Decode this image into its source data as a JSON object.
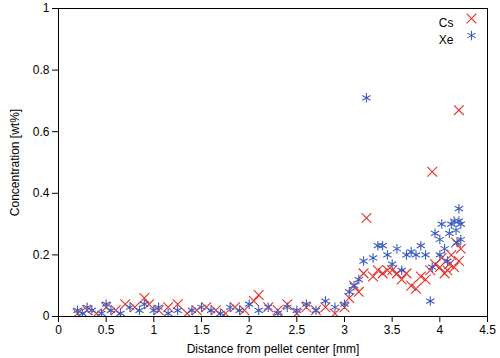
{
  "chart_data": {
    "type": "scatter",
    "x_label": "Distance from pellet center [mm]",
    "y_label": "Concentration [wt%]",
    "xlim": [
      0,
      4.5
    ],
    "xticks": [
      0,
      0.5,
      1,
      1.5,
      2,
      2.5,
      3,
      3.5,
      4,
      4.5
    ],
    "ylim": [
      0,
      1
    ],
    "yticks": [
      0,
      0.2,
      0.4,
      0.6,
      0.8,
      1
    ],
    "grid": false,
    "legend": "top-right",
    "series": [
      {
        "name": "Cs",
        "color": "#e3312b",
        "marker": "x",
        "x": [
          0.2,
          0.3,
          0.4,
          0.5,
          0.6,
          0.7,
          0.8,
          0.9,
          0.95,
          1.05,
          1.15,
          1.25,
          1.35,
          1.45,
          1.55,
          1.65,
          1.75,
          1.85,
          1.95,
          2.05,
          2.1,
          2.2,
          2.3,
          2.4,
          2.5,
          2.6,
          2.7,
          2.8,
          2.9,
          3.0,
          3.05,
          3.1,
          3.15,
          3.2,
          3.23,
          3.3,
          3.35,
          3.4,
          3.45,
          3.5,
          3.55,
          3.6,
          3.65,
          3.7,
          3.75,
          3.8,
          3.85,
          3.9,
          3.92,
          3.95,
          4.0,
          4.02,
          4.05,
          4.08,
          4.1,
          4.12,
          4.15,
          4.17,
          4.2,
          4.2,
          4.22
        ],
        "values": [
          0.01,
          0.02,
          0.01,
          0.03,
          0.02,
          0.04,
          0.03,
          0.06,
          0.04,
          0.02,
          0.03,
          0.04,
          0.01,
          0.02,
          0.03,
          0.02,
          0.01,
          0.03,
          0.02,
          0.05,
          0.07,
          0.03,
          0.02,
          0.04,
          0.01,
          0.03,
          0.02,
          0.03,
          0.01,
          0.03,
          0.06,
          0.1,
          0.08,
          0.14,
          0.32,
          0.13,
          0.15,
          0.14,
          0.15,
          0.15,
          0.14,
          0.12,
          0.14,
          0.1,
          0.09,
          0.13,
          0.12,
          0.15,
          0.47,
          0.17,
          0.16,
          0.19,
          0.14,
          0.15,
          0.17,
          0.2,
          0.16,
          0.24,
          0.67,
          0.18,
          0.22
        ]
      },
      {
        "name": "Xe",
        "color": "#3a5cc0",
        "marker": "asterisk",
        "x": [
          0.2,
          0.25,
          0.3,
          0.35,
          0.45,
          0.5,
          0.55,
          0.65,
          0.75,
          0.85,
          0.9,
          1.0,
          1.05,
          1.15,
          1.25,
          1.4,
          1.5,
          1.6,
          1.7,
          1.8,
          1.9,
          2.0,
          2.1,
          2.2,
          2.3,
          2.4,
          2.5,
          2.6,
          2.7,
          2.8,
          2.9,
          3.0,
          3.05,
          3.1,
          3.15,
          3.2,
          3.23,
          3.3,
          3.35,
          3.4,
          3.45,
          3.5,
          3.55,
          3.6,
          3.65,
          3.7,
          3.75,
          3.8,
          3.85,
          3.9,
          3.92,
          3.95,
          4.0,
          4.0,
          4.02,
          4.05,
          4.08,
          4.1,
          4.12,
          4.15,
          4.17,
          4.18,
          4.2,
          4.2,
          4.22,
          4.22
        ],
        "values": [
          0.02,
          0.01,
          0.03,
          0.02,
          0.01,
          0.04,
          0.02,
          0.01,
          0.03,
          0.02,
          0.04,
          0.02,
          0.03,
          0.01,
          0.02,
          0.02,
          0.03,
          0.02,
          0.01,
          0.03,
          0.02,
          0.04,
          0.02,
          0.03,
          0.01,
          0.03,
          0.02,
          0.04,
          0.02,
          0.05,
          0.03,
          0.04,
          0.08,
          0.1,
          0.12,
          0.18,
          0.71,
          0.19,
          0.23,
          0.23,
          0.2,
          0.17,
          0.22,
          0.15,
          0.2,
          0.21,
          0.2,
          0.23,
          0.2,
          0.05,
          0.16,
          0.27,
          0.25,
          0.2,
          0.3,
          0.22,
          0.18,
          0.27,
          0.3,
          0.31,
          0.28,
          0.24,
          0.35,
          0.31,
          0.3,
          0.25
        ]
      }
    ]
  }
}
